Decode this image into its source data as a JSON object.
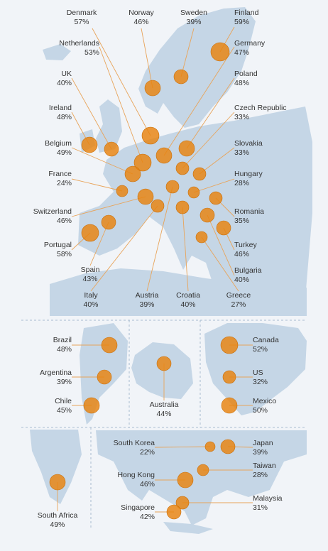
{
  "colors": {
    "land": "#c5d6e6",
    "bubble": "#e8820e",
    "bubble_edge": "#c96e08",
    "leader": "#e8a45a",
    "divider": "#a9bdd0",
    "text": "#333333"
  },
  "europe": [
    {
      "key": "denmark",
      "name": "Denmark",
      "value": "57%"
    },
    {
      "key": "norway",
      "name": "Norway",
      "value": "46%"
    },
    {
      "key": "sweden",
      "name": "Sweden",
      "value": "39%"
    },
    {
      "key": "finland",
      "name": "Finland",
      "value": "59%"
    },
    {
      "key": "netherlands",
      "name": "Netherlands",
      "value": "53%"
    },
    {
      "key": "germany",
      "name": "Germany",
      "value": "47%"
    },
    {
      "key": "uk",
      "name": "UK",
      "value": "40%"
    },
    {
      "key": "poland",
      "name": "Poland",
      "value": "48%"
    },
    {
      "key": "ireland",
      "name": "Ireland",
      "value": "48%"
    },
    {
      "key": "czech",
      "name": "Czech Republic",
      "value": "33%"
    },
    {
      "key": "belgium",
      "name": "Belgium",
      "value": "49%"
    },
    {
      "key": "slovakia",
      "name": "Slovakia",
      "value": "33%"
    },
    {
      "key": "france",
      "name": "France",
      "value": "24%"
    },
    {
      "key": "hungary",
      "name": "Hungary",
      "value": "28%"
    },
    {
      "key": "switzerland",
      "name": "Switzerland",
      "value": "46%"
    },
    {
      "key": "romania",
      "name": "Romania",
      "value": "35%"
    },
    {
      "key": "portugal",
      "name": "Portugal",
      "value": "58%"
    },
    {
      "key": "turkey",
      "name": "Turkey",
      "value": "46%"
    },
    {
      "key": "spain",
      "name": "Spain",
      "value": "43%"
    },
    {
      "key": "bulgaria",
      "name": "Bulgaria",
      "value": "40%"
    },
    {
      "key": "italy",
      "name": "Italy",
      "value": "40%"
    },
    {
      "key": "austria",
      "name": "Austria",
      "value": "39%"
    },
    {
      "key": "croatia",
      "name": "Croatia",
      "value": "40%"
    },
    {
      "key": "greece",
      "name": "Greece",
      "value": "27%"
    }
  ],
  "americas": [
    {
      "key": "brazil",
      "name": "Brazil",
      "value": "48%"
    },
    {
      "key": "argentina",
      "name": "Argentina",
      "value": "39%"
    },
    {
      "key": "chile",
      "name": "Chile",
      "value": "45%"
    },
    {
      "key": "canada",
      "name": "Canada",
      "value": "52%"
    },
    {
      "key": "us",
      "name": "US",
      "value": "32%"
    },
    {
      "key": "mexico",
      "name": "Mexico",
      "value": "50%"
    }
  ],
  "oceania": [
    {
      "key": "australia",
      "name": "Australia",
      "value": "44%"
    }
  ],
  "africa_asia": [
    {
      "key": "southafrica",
      "name": "South Africa",
      "value": "49%"
    },
    {
      "key": "southkorea",
      "name": "South Korea",
      "value": "22%"
    },
    {
      "key": "japan",
      "name": "Japan",
      "value": "39%"
    },
    {
      "key": "taiwan",
      "name": "Taiwan",
      "value": "28%"
    },
    {
      "key": "hongkong",
      "name": "Hong Kong",
      "value": "46%"
    },
    {
      "key": "malaysia",
      "name": "Malaysia",
      "value": "31%"
    },
    {
      "key": "singapore",
      "name": "Singapore",
      "value": "42%"
    }
  ]
}
